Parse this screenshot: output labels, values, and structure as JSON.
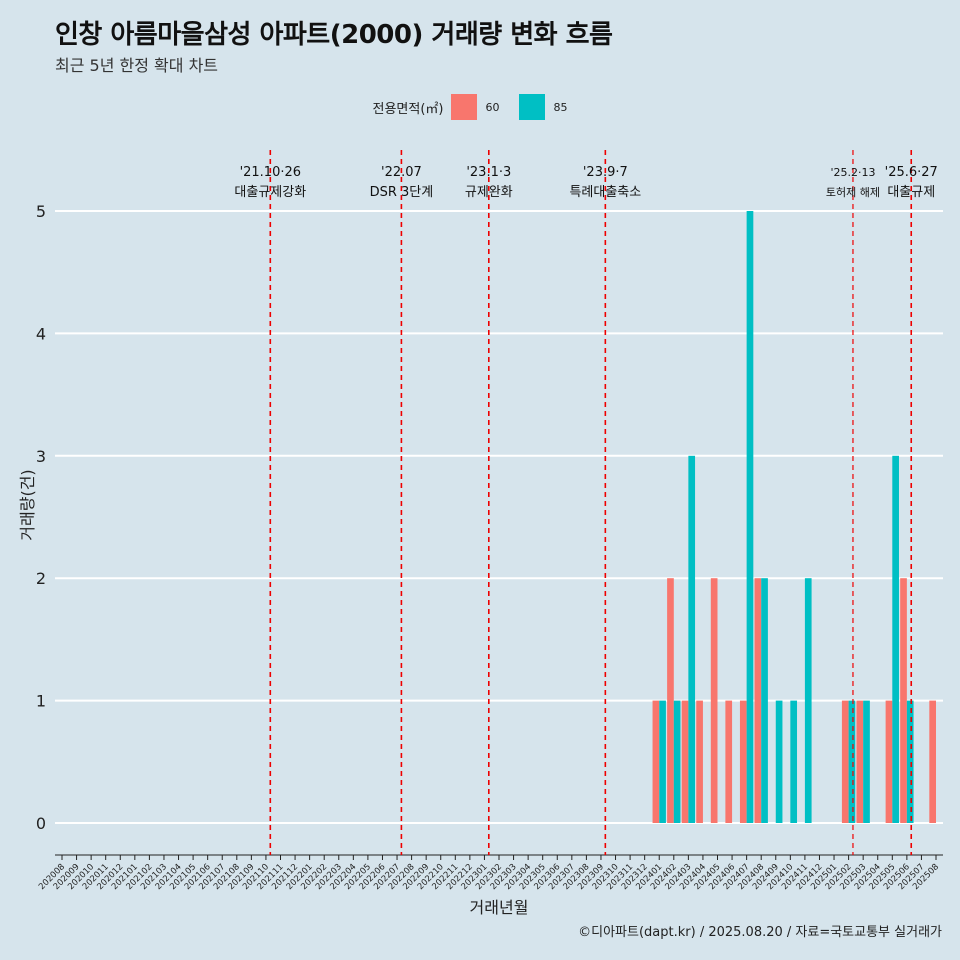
{
  "title": "인창 아름마을삼성 아파트(2000) 거래량 변화 흐름",
  "subtitle": "최근 5년 한정 확대 차트",
  "caption": "©디아파트(dapt.kr) / 2025.08.20 / 자료=국토교통부 실거래가",
  "legend": {
    "title": "전용면적(㎡)",
    "items": [
      {
        "label": "60",
        "color": "#f8766d"
      },
      {
        "label": "85",
        "color": "#00bfc4"
      }
    ]
  },
  "chart_data": {
    "type": "bar",
    "xlabel": "거래년월",
    "ylabel": "거래량(건)",
    "ylim": [
      0,
      5
    ],
    "yticks": [
      0,
      1,
      2,
      3,
      4,
      5
    ],
    "categories": [
      "202008",
      "202009",
      "202010",
      "202011",
      "202012",
      "202101",
      "202102",
      "202103",
      "202104",
      "202105",
      "202106",
      "202107",
      "202108",
      "202109",
      "202110",
      "202111",
      "202112",
      "202201",
      "202202",
      "202203",
      "202204",
      "202205",
      "202206",
      "202207",
      "202208",
      "202209",
      "202210",
      "202211",
      "202212",
      "202301",
      "202302",
      "202303",
      "202304",
      "202305",
      "202306",
      "202307",
      "202308",
      "202309",
      "202310",
      "202311",
      "202312",
      "202401",
      "202402",
      "202403",
      "202404",
      "202405",
      "202406",
      "202407",
      "202408",
      "202409",
      "202410",
      "202411",
      "202412",
      "202501",
      "202502",
      "202503",
      "202504",
      "202505",
      "202506",
      "202507",
      "202508"
    ],
    "series": [
      {
        "name": "60",
        "color": "#f8766d",
        "values": [
          0,
          0,
          0,
          0,
          0,
          0,
          0,
          0,
          0,
          0,
          0,
          0,
          0,
          0,
          0,
          0,
          0,
          0,
          0,
          0,
          0,
          0,
          0,
          0,
          0,
          0,
          0,
          0,
          0,
          0,
          0,
          0,
          0,
          0,
          0,
          0,
          0,
          0,
          0,
          0,
          0,
          1,
          2,
          1,
          1,
          2,
          1,
          1,
          2,
          0,
          0,
          0,
          0,
          0,
          1,
          1,
          0,
          1,
          2,
          0,
          1
        ]
      },
      {
        "name": "85",
        "color": "#00bfc4",
        "values": [
          0,
          0,
          0,
          0,
          0,
          0,
          0,
          0,
          0,
          0,
          0,
          0,
          0,
          0,
          0,
          0,
          0,
          0,
          0,
          0,
          0,
          0,
          0,
          0,
          0,
          0,
          0,
          0,
          0,
          0,
          0,
          0,
          0,
          0,
          0,
          0,
          0,
          0,
          0,
          0,
          0,
          1,
          1,
          3,
          0,
          0,
          0,
          5,
          2,
          1,
          1,
          2,
          0,
          0,
          1,
          1,
          0,
          3,
          1,
          0,
          0
        ]
      }
    ],
    "annotations": [
      {
        "date": "'21.10·26",
        "text": "대출규제강화",
        "index": 14.3,
        "small": false
      },
      {
        "date": "'22.07",
        "text": "DSR 3단계",
        "index": 23.3,
        "small": false
      },
      {
        "date": "'23.1·3",
        "text": "규제완화",
        "index": 29.3,
        "small": false
      },
      {
        "date": "'23.9·7",
        "text": "특례대출축소",
        "index": 37.3,
        "small": false
      },
      {
        "date": "'25.2·13",
        "text": "토허제 해제",
        "index": 54.3,
        "small": true
      },
      {
        "date": "'25.6·27",
        "text": "대출규제",
        "index": 58.3,
        "small": false
      }
    ]
  }
}
